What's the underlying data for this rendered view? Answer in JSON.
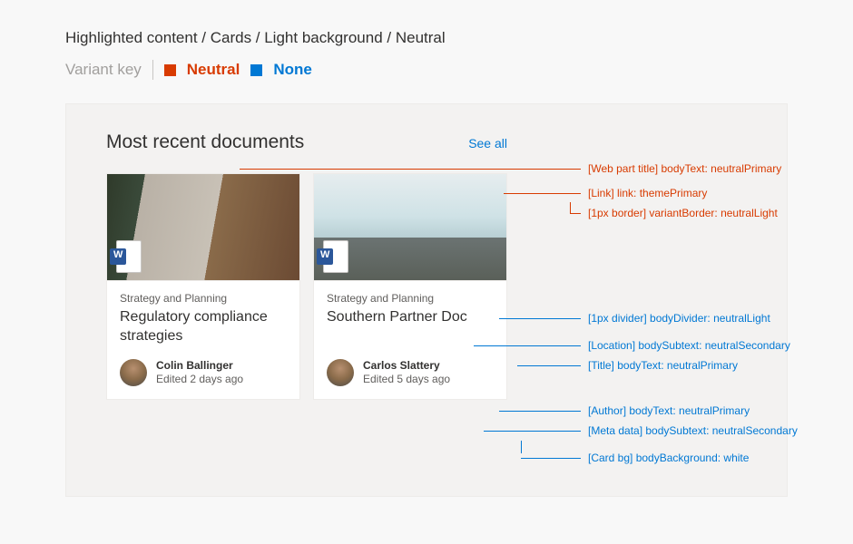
{
  "header": {
    "breadcrumb": "Highlighted content / Cards / Light background / Neutral",
    "variant_key_label": "Variant key",
    "variant_neutral": "Neutral",
    "variant_none": "None"
  },
  "colors": {
    "neutral_swatch": "#d83b01",
    "none_swatch": "#0078d4",
    "page_bg": "#f8f8f8",
    "panel_bg": "#f3f2f1",
    "card_bg": "#ffffff",
    "neutral_light": "#edebe9",
    "neutral_primary": "#323130",
    "neutral_secondary": "#605e5c",
    "theme_primary": "#0078d4",
    "word_brand": "#2b579a"
  },
  "panel": {
    "title": "Most recent documents",
    "see_all": "See all"
  },
  "cards": [
    {
      "location": "Strategy and Planning",
      "title": "Regulatory compliance strategies",
      "author": "Colin Ballinger",
      "meta": "Edited 2 days ago",
      "thumb_style": "people"
    },
    {
      "location": "Strategy and Planning",
      "title": "Southern Partner Doc",
      "author": "Carlos Slattery",
      "meta": "Edited 5 days ago",
      "thumb_style": "sea"
    }
  ],
  "annotations": [
    {
      "color": "red",
      "text": "[Web part title] bodyText: neutralPrimary"
    },
    {
      "color": "red",
      "text": "[Link] link: themePrimary"
    },
    {
      "color": "red",
      "text": "[1px border] variantBorder: neutralLight"
    },
    {
      "color": "blue",
      "text": "[1px divider] bodyDivider: neutralLight"
    },
    {
      "color": "blue",
      "text": "[Location] bodySubtext: neutralSecondary"
    },
    {
      "color": "blue",
      "text": "[Title] bodyText: neutralPrimary"
    },
    {
      "color": "blue",
      "text": "[Author] bodyText: neutralPrimary"
    },
    {
      "color": "blue",
      "text": "[Meta data] bodySubtext: neutralSecondary"
    },
    {
      "color": "blue",
      "text": "[Card bg] bodyBackground: white"
    }
  ],
  "typography": {
    "breadcrumb_fontsize": 17,
    "panel_title_fontsize": 21,
    "card_title_fontsize": 16,
    "annotation_fontsize": 12,
    "body_small_fontsize": 12
  }
}
